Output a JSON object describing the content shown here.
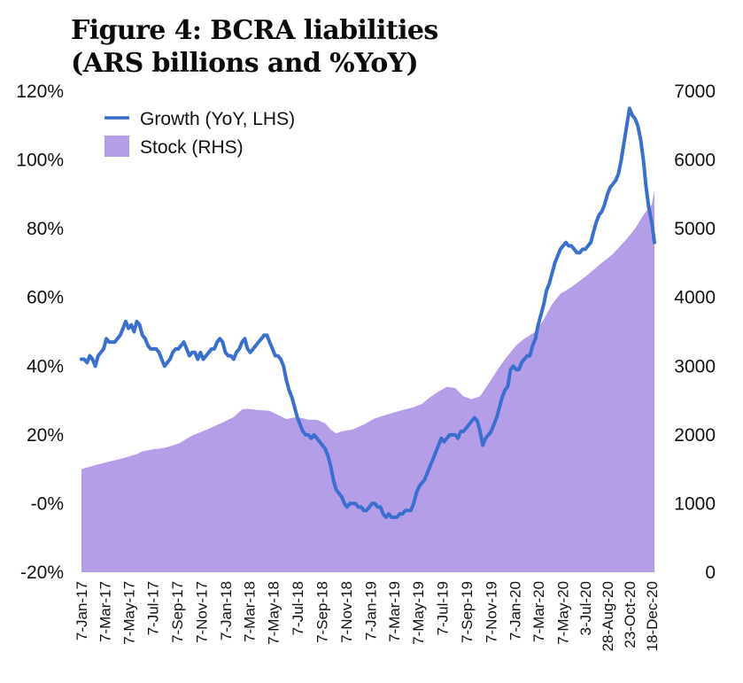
{
  "chart_data": {
    "type": "line+area",
    "title_line1": "Figure 4: BCRA liabilities",
    "title_line2": "(ARS billions and %YoY)",
    "left_axis": {
      "ylim": [
        -20,
        120
      ],
      "ticks": [
        "-20%",
        "-0%",
        "20%",
        "40%",
        "60%",
        "80%",
        "100%",
        "120%"
      ],
      "tick_values": [
        -20,
        0,
        20,
        40,
        60,
        80,
        100,
        120
      ]
    },
    "right_axis": {
      "ylim": [
        0,
        7000
      ],
      "ticks": [
        "0",
        "1000",
        "2000",
        "3000",
        "4000",
        "5000",
        "6000",
        "7000"
      ],
      "tick_values": [
        0,
        1000,
        2000,
        3000,
        4000,
        5000,
        6000,
        7000
      ]
    },
    "x_range": [
      0,
      207
    ],
    "x_labels": [
      {
        "label": "7-Jan-17",
        "pos": 0
      },
      {
        "label": "7-Mar-17",
        "pos": 8.4
      },
      {
        "label": "7-May-17",
        "pos": 17.1
      },
      {
        "label": "7-Jul-17",
        "pos": 25.7
      },
      {
        "label": "7-Sep-17",
        "pos": 34.6
      },
      {
        "label": "7-Nov-17",
        "pos": 43.4
      },
      {
        "label": "7-Jan-18",
        "pos": 52.1
      },
      {
        "label": "7-Mar-18",
        "pos": 60.6
      },
      {
        "label": "7-May-18",
        "pos": 69.3
      },
      {
        "label": "7-Jul-18",
        "pos": 78.0
      },
      {
        "label": "7-Sep-18",
        "pos": 86.9
      },
      {
        "label": "7-Nov-18",
        "pos": 95.6
      },
      {
        "label": "7-Jan-19",
        "pos": 104.4
      },
      {
        "label": "7-Mar-19",
        "pos": 112.9
      },
      {
        "label": "7-May-19",
        "pos": 121.6
      },
      {
        "label": "7-Jul-19",
        "pos": 130.3
      },
      {
        "label": "7-Sep-19",
        "pos": 139.1
      },
      {
        "label": "7-Nov-19",
        "pos": 147.9
      },
      {
        "label": "7-Jan-20",
        "pos": 156.6
      },
      {
        "label": "7-Mar-20",
        "pos": 165.1
      },
      {
        "label": "7-May-20",
        "pos": 173.9
      },
      {
        "label": "3-Jul-20",
        "pos": 182.0
      },
      {
        "label": "28-Aug-20",
        "pos": 190.0
      },
      {
        "label": "23-Oct-20",
        "pos": 198.0
      },
      {
        "label": "18-Dec-20",
        "pos": 206.0
      }
    ],
    "series": [
      {
        "name": "Growth (YoY, LHS)",
        "type": "line",
        "axis": "left",
        "color": "#3a6fd0",
        "points": [
          [
            0,
            42
          ],
          [
            1,
            42
          ],
          [
            2,
            41
          ],
          [
            3,
            43
          ],
          [
            4,
            42
          ],
          [
            5,
            40
          ],
          [
            6,
            43
          ],
          [
            7,
            44
          ],
          [
            8,
            45
          ],
          [
            9,
            48
          ],
          [
            10,
            47
          ],
          [
            11,
            47
          ],
          [
            12,
            47
          ],
          [
            13,
            48
          ],
          [
            14,
            49
          ],
          [
            15,
            51
          ],
          [
            16,
            53
          ],
          [
            17,
            51
          ],
          [
            18,
            52
          ],
          [
            19,
            50
          ],
          [
            20,
            53
          ],
          [
            21,
            52
          ],
          [
            22,
            49
          ],
          [
            23,
            48
          ],
          [
            24,
            46
          ],
          [
            25,
            45
          ],
          [
            26,
            45
          ],
          [
            27,
            45
          ],
          [
            28,
            44
          ],
          [
            29,
            42
          ],
          [
            30,
            40
          ],
          [
            31,
            41
          ],
          [
            32,
            42
          ],
          [
            33,
            44
          ],
          [
            34,
            45
          ],
          [
            35,
            45
          ],
          [
            36,
            46
          ],
          [
            37,
            47
          ],
          [
            38,
            45
          ],
          [
            39,
            43
          ],
          [
            40,
            44
          ],
          [
            41,
            44
          ],
          [
            42,
            42
          ],
          [
            43,
            44
          ],
          [
            44,
            42
          ],
          [
            45,
            43
          ],
          [
            46,
            44
          ],
          [
            47,
            45
          ],
          [
            48,
            45
          ],
          [
            49,
            47
          ],
          [
            50,
            48
          ],
          [
            51,
            47
          ],
          [
            52,
            44
          ],
          [
            53,
            43
          ],
          [
            54,
            43
          ],
          [
            55,
            42
          ],
          [
            56,
            44
          ],
          [
            57,
            45
          ],
          [
            58,
            47
          ],
          [
            59,
            48
          ],
          [
            60,
            45
          ],
          [
            61,
            44
          ],
          [
            62,
            45
          ],
          [
            63,
            46
          ],
          [
            64,
            47
          ],
          [
            65,
            48
          ],
          [
            66,
            49
          ],
          [
            67,
            49
          ],
          [
            68,
            47
          ],
          [
            69,
            45
          ],
          [
            70,
            43
          ],
          [
            71,
            43
          ],
          [
            72,
            42
          ],
          [
            73,
            40
          ],
          [
            74,
            36
          ],
          [
            75,
            33
          ],
          [
            76,
            31
          ],
          [
            77,
            28
          ],
          [
            78,
            25
          ],
          [
            79,
            23
          ],
          [
            80,
            21
          ],
          [
            81,
            20
          ],
          [
            82,
            20
          ],
          [
            83,
            19
          ],
          [
            84,
            20
          ],
          [
            85,
            19
          ],
          [
            86,
            18
          ],
          [
            87,
            17
          ],
          [
            88,
            16
          ],
          [
            89,
            14
          ],
          [
            90,
            11
          ],
          [
            91,
            7
          ],
          [
            92,
            4
          ],
          [
            93,
            3
          ],
          [
            94,
            2
          ],
          [
            95,
            0
          ],
          [
            96,
            -1
          ],
          [
            97,
            0
          ],
          [
            98,
            0
          ],
          [
            99,
            0
          ],
          [
            100,
            -1
          ],
          [
            101,
            -1
          ],
          [
            102,
            -2
          ],
          [
            103,
            -2
          ],
          [
            104,
            -1
          ],
          [
            105,
            0
          ],
          [
            106,
            0
          ],
          [
            107,
            -1
          ],
          [
            108,
            -1
          ],
          [
            109,
            -3
          ],
          [
            110,
            -4
          ],
          [
            111,
            -3
          ],
          [
            112,
            -4
          ],
          [
            113,
            -4
          ],
          [
            114,
            -4
          ],
          [
            115,
            -3
          ],
          [
            116,
            -3
          ],
          [
            117,
            -2
          ],
          [
            118,
            -2
          ],
          [
            119,
            -2
          ],
          [
            120,
            0
          ],
          [
            121,
            3
          ],
          [
            122,
            5
          ],
          [
            123,
            6
          ],
          [
            124,
            7
          ],
          [
            125,
            9
          ],
          [
            126,
            11
          ],
          [
            127,
            13
          ],
          [
            128,
            15
          ],
          [
            129,
            17
          ],
          [
            130,
            19
          ],
          [
            131,
            18
          ],
          [
            132,
            19
          ],
          [
            133,
            20
          ],
          [
            134,
            20
          ],
          [
            135,
            20
          ],
          [
            136,
            19
          ],
          [
            137,
            21
          ],
          [
            138,
            21
          ],
          [
            139,
            22
          ],
          [
            140,
            23
          ],
          [
            141,
            24
          ],
          [
            142,
            25
          ],
          [
            143,
            24
          ],
          [
            144,
            21
          ],
          [
            145,
            17
          ],
          [
            146,
            19
          ],
          [
            147,
            20
          ],
          [
            148,
            21
          ],
          [
            149,
            23
          ],
          [
            150,
            25
          ],
          [
            151,
            28
          ],
          [
            152,
            31
          ],
          [
            153,
            33
          ],
          [
            154,
            34
          ],
          [
            155,
            39
          ],
          [
            156,
            40
          ],
          [
            157,
            39
          ],
          [
            158,
            39
          ],
          [
            159,
            41
          ],
          [
            160,
            42
          ],
          [
            161,
            43
          ],
          [
            162,
            43
          ],
          [
            163,
            46
          ],
          [
            164,
            48
          ],
          [
            165,
            52
          ],
          [
            166,
            55
          ],
          [
            167,
            58
          ],
          [
            168,
            62
          ],
          [
            169,
            64
          ],
          [
            170,
            67
          ],
          [
            171,
            70
          ],
          [
            172,
            72
          ],
          [
            173,
            74
          ],
          [
            174,
            75
          ],
          [
            175,
            76
          ],
          [
            176,
            75
          ],
          [
            177,
            75
          ],
          [
            178,
            74
          ],
          [
            179,
            73
          ],
          [
            180,
            73
          ],
          [
            181,
            74
          ],
          [
            182,
            74
          ],
          [
            183,
            75
          ],
          [
            184,
            76
          ],
          [
            185,
            79
          ],
          [
            186,
            82
          ],
          [
            187,
            84
          ],
          [
            188,
            85
          ],
          [
            189,
            87
          ],
          [
            190,
            90
          ],
          [
            191,
            92
          ],
          [
            192,
            93
          ],
          [
            193,
            94
          ],
          [
            194,
            96
          ],
          [
            195,
            100
          ],
          [
            196,
            105
          ],
          [
            197,
            110
          ],
          [
            198,
            115
          ],
          [
            199,
            113
          ],
          [
            200,
            112
          ],
          [
            201,
            110
          ],
          [
            202,
            106
          ],
          [
            203,
            100
          ],
          [
            204,
            92
          ],
          [
            205,
            86
          ],
          [
            206,
            82
          ],
          [
            207,
            76
          ]
        ]
      },
      {
        "name": "Stock (RHS)",
        "type": "area",
        "axis": "right",
        "color": "#b59ee8",
        "points": [
          [
            0,
            1500
          ],
          [
            5,
            1560
          ],
          [
            10,
            1610
          ],
          [
            15,
            1660
          ],
          [
            20,
            1720
          ],
          [
            22,
            1760
          ],
          [
            26,
            1790
          ],
          [
            30,
            1810
          ],
          [
            35,
            1870
          ],
          [
            40,
            1990
          ],
          [
            45,
            2070
          ],
          [
            50,
            2160
          ],
          [
            55,
            2260
          ],
          [
            58,
            2370
          ],
          [
            60,
            2380
          ],
          [
            64,
            2360
          ],
          [
            68,
            2350
          ],
          [
            71,
            2290
          ],
          [
            74,
            2230
          ],
          [
            78,
            2260
          ],
          [
            82,
            2220
          ],
          [
            85,
            2220
          ],
          [
            88,
            2170
          ],
          [
            90,
            2080
          ],
          [
            92,
            2020
          ],
          [
            94,
            2050
          ],
          [
            98,
            2080
          ],
          [
            102,
            2150
          ],
          [
            106,
            2240
          ],
          [
            110,
            2290
          ],
          [
            115,
            2350
          ],
          [
            120,
            2400
          ],
          [
            123,
            2450
          ],
          [
            126,
            2550
          ],
          [
            129,
            2630
          ],
          [
            132,
            2700
          ],
          [
            135,
            2680
          ],
          [
            138,
            2560
          ],
          [
            141,
            2520
          ],
          [
            144,
            2560
          ],
          [
            145,
            2620
          ],
          [
            148,
            2800
          ],
          [
            150,
            2930
          ],
          [
            153,
            3100
          ],
          [
            157,
            3300
          ],
          [
            160,
            3400
          ],
          [
            164,
            3500
          ],
          [
            167,
            3680
          ],
          [
            170,
            3900
          ],
          [
            173,
            4050
          ],
          [
            177,
            4150
          ],
          [
            182,
            4300
          ],
          [
            187,
            4470
          ],
          [
            192,
            4630
          ],
          [
            197,
            4850
          ],
          [
            200,
            5000
          ],
          [
            203,
            5200
          ],
          [
            206,
            5350
          ],
          [
            207,
            5550
          ]
        ]
      }
    ],
    "legend": {
      "position": "top-left",
      "entries": [
        "Growth (YoY, LHS)",
        "Stock (RHS)"
      ]
    }
  }
}
